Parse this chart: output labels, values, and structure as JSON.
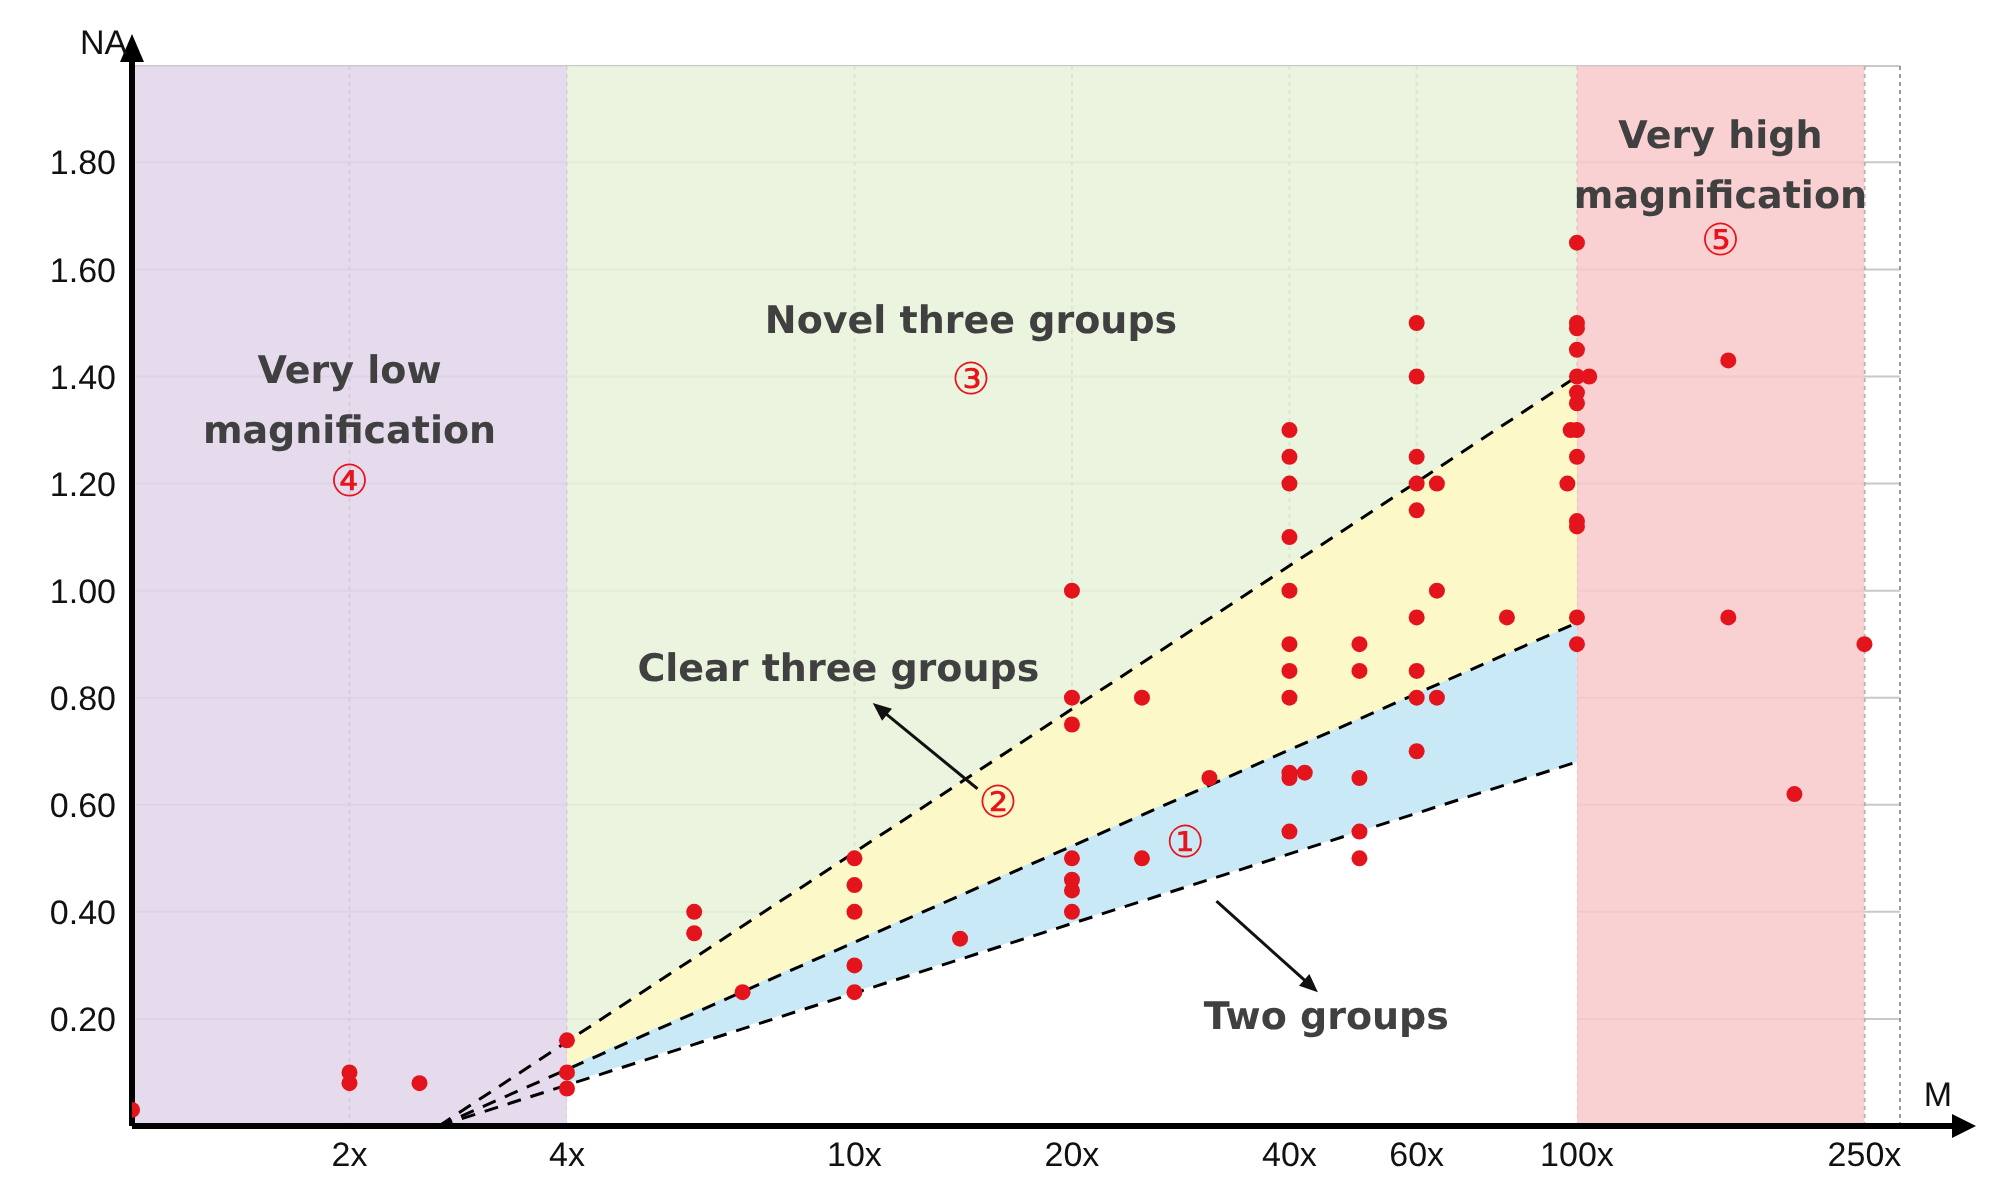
{
  "chart_data": {
    "type": "scatter",
    "xlabel": "M",
    "ylabel": "NA",
    "log": "x",
    "grid": true,
    "marker": "circle",
    "xlim": [
      1,
      280
    ],
    "ylim": [
      0,
      1.98
    ],
    "xticks": [
      {
        "value": 2,
        "label": "2x"
      },
      {
        "value": 4,
        "label": "4x"
      },
      {
        "value": 10,
        "label": "10x"
      },
      {
        "value": 20,
        "label": "20x"
      },
      {
        "value": 40,
        "label": "40x"
      },
      {
        "value": 60,
        "label": "60x"
      },
      {
        "value": 100,
        "label": "100x"
      },
      {
        "value": 250,
        "label": "250x"
      }
    ],
    "yticks": [
      {
        "value": 0.2,
        "label": "0.20"
      },
      {
        "value": 0.4,
        "label": "0.40"
      },
      {
        "value": 0.6,
        "label": "0.60"
      },
      {
        "value": 0.8,
        "label": "0.80"
      },
      {
        "value": 1,
        "label": "1.00"
      },
      {
        "value": 1.2,
        "label": "1.20"
      },
      {
        "value": 1.4,
        "label": "1.40"
      },
      {
        "value": 1.6,
        "label": "1.60"
      },
      {
        "value": 1.8,
        "label": "1.80"
      }
    ],
    "bands": [
      {
        "axis": "x",
        "from": 1,
        "to": 4,
        "color": "#e1d5ea"
      },
      {
        "axis": "x",
        "from": 4,
        "to": 100,
        "color": "#e6f2d8"
      },
      {
        "axis": "x",
        "from": 100,
        "to": 250,
        "color": "#f9c9cb"
      }
    ],
    "series": [
      {
        "type": "area",
        "color": "#fdf8c8",
        "marker": "none",
        "x": [
          4,
          100
        ],
        "values": [
          0.16,
          1.4
        ]
      },
      {
        "type": "area",
        "color": "#c9e9f6",
        "marker": "none",
        "x": [
          4,
          100
        ],
        "values": [
          0.11,
          0.94
        ]
      },
      {
        "type": "area",
        "color": "#ffffff",
        "marker": "none",
        "x": [
          4,
          100
        ],
        "values": [
          0.08,
          0.68
        ]
      },
      {
        "type": "line",
        "color": "#000000",
        "line_style": "dashed",
        "marker": "none",
        "x": [
          2.66,
          100
        ],
        "values": [
          0,
          1.4
        ]
      },
      {
        "type": "line",
        "color": "#000000",
        "line_style": "dashed",
        "marker": "none",
        "x": [
          2.66,
          100
        ],
        "values": [
          0,
          0.94
        ]
      },
      {
        "type": "line",
        "color": "#000000",
        "line_style": "dashed",
        "marker": "none",
        "x": [
          2.66,
          100
        ],
        "values": [
          0,
          0.68
        ]
      },
      {
        "color": "#e3141b",
        "x": [
          1,
          2,
          2,
          2.5,
          4,
          4,
          4,
          6,
          6,
          7,
          10,
          10,
          10,
          10,
          10,
          14,
          20,
          20,
          20,
          20,
          20,
          20,
          20,
          25,
          25,
          31,
          40,
          40,
          40,
          40,
          40,
          40,
          40,
          40,
          40,
          40,
          40,
          42,
          50,
          50,
          50,
          50,
          50,
          60,
          60,
          60,
          60,
          60,
          60,
          60,
          60,
          60,
          64,
          64,
          64,
          80,
          100,
          100,
          100,
          100,
          100,
          100,
          100,
          100,
          100,
          100,
          100,
          100,
          100,
          104,
          97,
          98,
          162,
          162,
          200,
          250
        ],
        "values": [
          0.03,
          0.1,
          0.08,
          0.08,
          0.16,
          0.1,
          0.07,
          0.4,
          0.36,
          0.25,
          0.5,
          0.45,
          0.4,
          0.3,
          0.25,
          0.35,
          1.0,
          0.8,
          0.75,
          0.5,
          0.46,
          0.44,
          0.4,
          0.8,
          0.5,
          0.65,
          1.3,
          1.25,
          1.2,
          1.1,
          1.0,
          0.9,
          0.85,
          0.8,
          0.66,
          0.65,
          0.55,
          0.66,
          0.9,
          0.85,
          0.65,
          0.55,
          0.5,
          1.5,
          1.4,
          1.25,
          1.2,
          1.15,
          0.95,
          0.85,
          0.8,
          0.7,
          1.2,
          1.0,
          0.8,
          0.95,
          1.65,
          1.5,
          1.49,
          1.45,
          1.4,
          1.37,
          1.35,
          1.3,
          1.25,
          1.13,
          1.12,
          0.95,
          0.9,
          1.4,
          1.2,
          1.3,
          1.43,
          0.95,
          0.62,
          0.9
        ]
      }
    ],
    "annotations": [
      "Very low magnification",
      "④",
      "Novel three groups",
      "③",
      "Clear three groups",
      "②",
      "①",
      "Two groups",
      "Very high magnification",
      "⑤"
    ]
  }
}
